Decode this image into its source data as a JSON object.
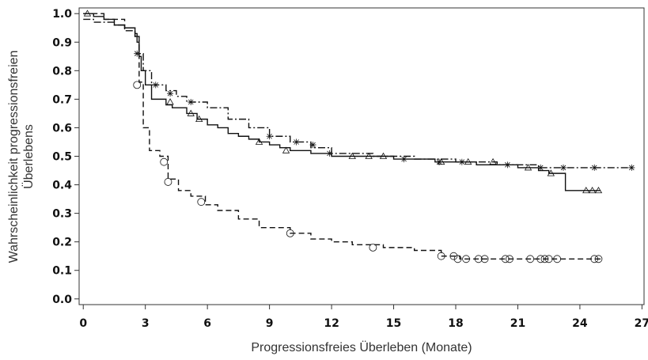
{
  "chart_data": {
    "type": "km",
    "x_label": "Progressionsfreies Überleben (Monate)",
    "y_label": [
      "Wahrscheinlichkeit progressionsfreien",
      "Überlebens"
    ],
    "xlim": [
      -0.2,
      27.1
    ],
    "ylim": [
      -0.02,
      1.02
    ],
    "xticks": [
      0,
      3,
      6,
      9,
      12,
      15,
      18,
      21,
      24,
      27
    ],
    "yticks": [
      {
        "value": 0,
        "label": "0.0"
      },
      0.1,
      0.2,
      0.3,
      0.4,
      0.5,
      0.6,
      0.7,
      0.8,
      0.9,
      {
        "value": 1,
        "label": "1.0"
      }
    ],
    "series": [
      {
        "line": "solid",
        "marker": "triangle",
        "color": "#111111",
        "x": [
          0,
          0.5,
          1,
          1.5,
          2,
          2.5,
          2.6,
          2.7,
          2.8,
          3.0,
          3.3,
          4,
          4.3,
          5,
          5.5,
          6,
          6.5,
          7,
          7.5,
          8,
          8.5,
          9,
          9.5,
          10,
          11,
          12,
          13,
          15,
          17,
          19,
          21,
          22,
          22.5,
          23.3,
          25
        ],
        "values": [
          1.0,
          0.99,
          0.98,
          0.96,
          0.95,
          0.93,
          0.9,
          0.85,
          0.8,
          0.75,
          0.7,
          0.68,
          0.67,
          0.65,
          0.63,
          0.61,
          0.6,
          0.58,
          0.57,
          0.56,
          0.55,
          0.54,
          0.53,
          0.52,
          0.51,
          0.5,
          0.5,
          0.49,
          0.48,
          0.47,
          0.46,
          0.45,
          0.44,
          0.38,
          0.38
        ],
        "censor_x": [
          0.2,
          4.2,
          5.2,
          5.6,
          8.5,
          9.8,
          13,
          13.8,
          14.5,
          17.3,
          18.6,
          19.8,
          21.5,
          22.6,
          24.3,
          24.6,
          24.9
        ],
        "censor_values": [
          1.0,
          0.69,
          0.65,
          0.63,
          0.55,
          0.52,
          0.5,
          0.5,
          0.5,
          0.48,
          0.48,
          0.48,
          0.46,
          0.44,
          0.38,
          0.38,
          0.38
        ]
      },
      {
        "line": "dashdot",
        "marker": "asterisk",
        "color": "#111111",
        "x": [
          0,
          0.5,
          1.5,
          2,
          2.5,
          2.7,
          2.9,
          3.3,
          4,
          4.5,
          5,
          6,
          7,
          8,
          9,
          10,
          11,
          12,
          14,
          16,
          18,
          20,
          22,
          26.5
        ],
        "values": [
          0.98,
          0.97,
          0.96,
          0.94,
          0.92,
          0.86,
          0.8,
          0.75,
          0.73,
          0.71,
          0.69,
          0.67,
          0.63,
          0.6,
          0.57,
          0.55,
          0.53,
          0.51,
          0.5,
          0.49,
          0.48,
          0.47,
          0.46,
          0.46
        ],
        "censor_x": [
          2.6,
          3.5,
          4.2,
          5.2,
          9,
          10.3,
          11.1,
          11.9,
          15.5,
          17.2,
          18.3,
          20.5,
          22.1,
          23.2,
          24.7,
          26.5
        ],
        "censor_values": [
          0.86,
          0.75,
          0.72,
          0.69,
          0.57,
          0.55,
          0.54,
          0.51,
          0.49,
          0.48,
          0.48,
          0.47,
          0.46,
          0.46,
          0.46,
          0.46
        ]
      },
      {
        "line": "dashed",
        "marker": "circle",
        "color": "#111111",
        "x": [
          0,
          1,
          2,
          2.5,
          2.7,
          2.9,
          3.2,
          3.7,
          4.1,
          4.6,
          5.2,
          5.9,
          6.5,
          7.5,
          8.5,
          10,
          11,
          12,
          13,
          14.5,
          16,
          17.3,
          18.2,
          25
        ],
        "values": [
          1.0,
          0.98,
          0.95,
          0.92,
          0.76,
          0.6,
          0.52,
          0.5,
          0.42,
          0.38,
          0.36,
          0.33,
          0.31,
          0.28,
          0.25,
          0.23,
          0.21,
          0.2,
          0.19,
          0.18,
          0.17,
          0.15,
          0.14,
          0.14
        ],
        "censor_x": [
          2.6,
          3.9,
          4.1,
          5.7,
          10,
          14,
          17.3,
          17.9,
          18.1,
          18.5,
          19.1,
          19.4,
          20.4,
          20.6,
          21.6,
          22.1,
          22.3,
          22.5,
          22.9,
          24.7,
          24.9
        ],
        "censor_values": [
          0.75,
          0.48,
          0.41,
          0.34,
          0.23,
          0.18,
          0.15,
          0.15,
          0.14,
          0.14,
          0.14,
          0.14,
          0.14,
          0.14,
          0.14,
          0.14,
          0.14,
          0.14,
          0.14,
          0.14,
          0.14
        ]
      }
    ]
  }
}
